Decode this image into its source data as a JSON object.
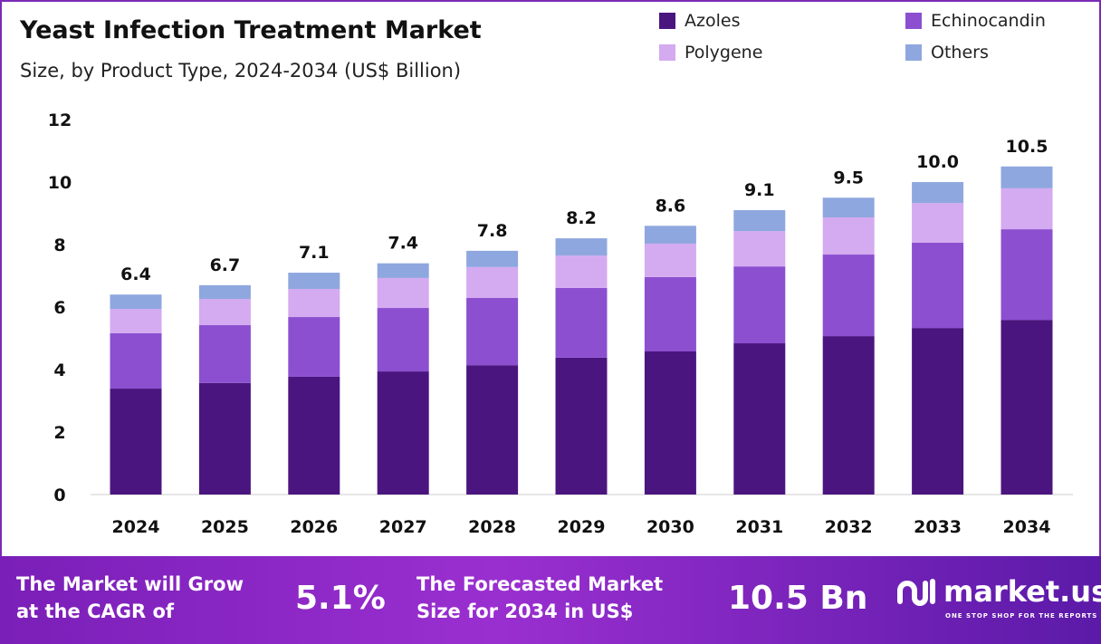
{
  "chart_data": {
    "type": "bar",
    "stacked": true,
    "title": "Yeast Infection Treatment Market",
    "subtitle": "Size, by Product Type, 2024-2034 (US$ Billion)",
    "categories": [
      "2024",
      "2025",
      "2026",
      "2027",
      "2028",
      "2029",
      "2030",
      "2031",
      "2032",
      "2033",
      "2034"
    ],
    "series": [
      {
        "name": "Azoles",
        "color": "#4b157f",
        "values": [
          3.39,
          3.57,
          3.77,
          3.94,
          4.14,
          4.38,
          4.58,
          4.84,
          5.07,
          5.33,
          5.59
        ]
      },
      {
        "name": "Echinocandin",
        "color": "#8b4fd0",
        "values": [
          1.77,
          1.85,
          1.91,
          2.03,
          2.15,
          2.23,
          2.38,
          2.46,
          2.61,
          2.73,
          2.9
        ]
      },
      {
        "name": "Polygene",
        "color": "#d4aaf0",
        "values": [
          0.78,
          0.84,
          0.9,
          0.96,
          0.99,
          1.04,
          1.07,
          1.13,
          1.19,
          1.27,
          1.31
        ]
      },
      {
        "name": "Others",
        "color": "#8fa7df",
        "values": [
          0.46,
          0.44,
          0.52,
          0.47,
          0.52,
          0.55,
          0.57,
          0.67,
          0.63,
          0.67,
          0.7
        ]
      }
    ],
    "totals": [
      "6.4",
      "6.7",
      "7.1",
      "7.4",
      "7.8",
      "8.2",
      "8.6",
      "9.1",
      "9.5",
      "10.0",
      "10.5"
    ],
    "yticks": [
      "0",
      "2",
      "4",
      "6",
      "8",
      "10",
      "12"
    ],
    "ylim": [
      0,
      12
    ],
    "grid": false,
    "legend_position": "top-right"
  },
  "footer": {
    "cagr_text_1": "The Market will Grow",
    "cagr_text_2": "at the CAGR of",
    "cagr_value": "5.1%",
    "forecast_text_1": "The Forecasted Market",
    "forecast_text_2": "Size for 2034 in US$",
    "forecast_value": "10.5 Bn",
    "logo_name": "market.us",
    "logo_tagline": "ONE STOP SHOP FOR THE REPORTS"
  }
}
